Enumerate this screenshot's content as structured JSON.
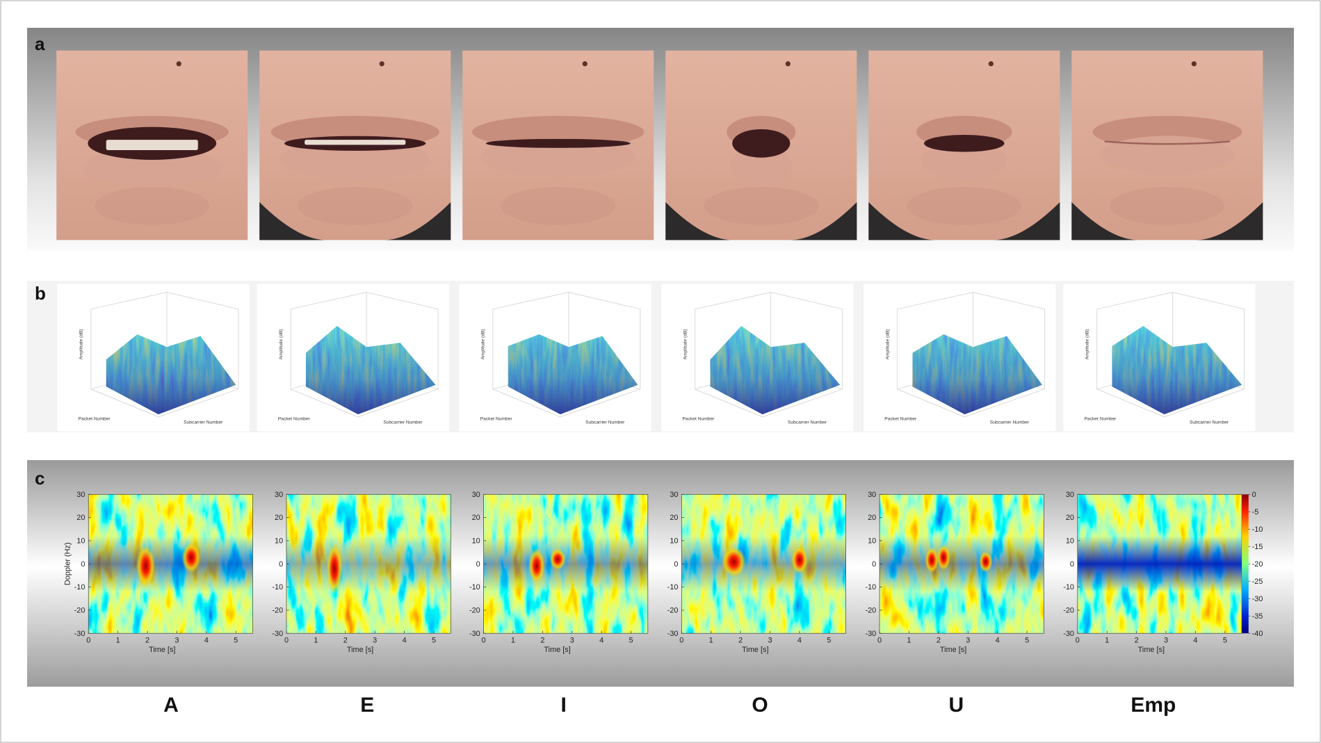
{
  "panels": [
    {
      "label": "a"
    },
    {
      "label": "b"
    },
    {
      "label": "c"
    }
  ],
  "surface_axes": {
    "z_label": "Amplitude (dB)",
    "x_label": "Packet Number",
    "y_label": "Subcarrier Number"
  },
  "spectrogram_axes": {
    "y_label": "Doppler (Hz)",
    "x_label": "Time [s]",
    "yticks": [
      30,
      20,
      10,
      0,
      -10,
      -20,
      -30
    ],
    "xticks": [
      0,
      1,
      2,
      3,
      4,
      5
    ]
  },
  "colorbar": {
    "ticks": [
      0,
      -5,
      -10,
      -15,
      -20,
      -25,
      -30,
      -35,
      -40
    ]
  },
  "vowels": [
    "A",
    "E",
    "I",
    "O",
    "U",
    "Emp"
  ]
}
